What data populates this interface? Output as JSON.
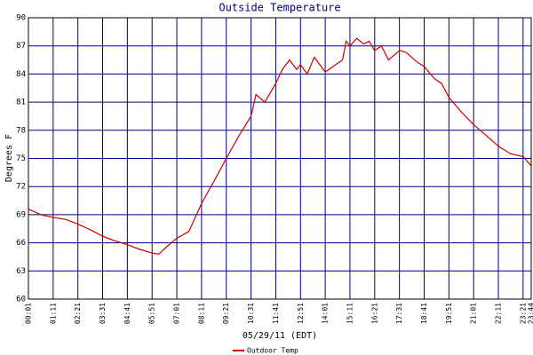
{
  "chart_data": {
    "type": "line",
    "title": "Outside Temperature",
    "x_label": "05/29/11 (EDT)",
    "y_label": "Degrees F",
    "x": [
      1,
      36,
      71,
      106,
      141,
      176,
      211,
      246,
      281,
      316,
      351,
      370,
      390,
      421,
      455,
      491,
      525,
      561,
      595,
      631,
      645,
      670,
      701,
      720,
      740,
      760,
      771,
      790,
      810,
      841,
      870,
      890,
      900,
      911,
      930,
      950,
      965,
      981,
      1000,
      1020,
      1051,
      1070,
      1100,
      1121,
      1150,
      1170,
      1191,
      1225,
      1261,
      1295,
      1331,
      1365,
      1401,
      1424
    ],
    "series": [
      {
        "name": "Outdoor Temp",
        "color": "#cc0000",
        "values": [
          69.6,
          69.0,
          68.7,
          68.5,
          68.0,
          67.4,
          66.7,
          66.2,
          65.8,
          65.3,
          64.9,
          64.8,
          65.5,
          66.5,
          67.2,
          70.2,
          72.5,
          75.0,
          77.3,
          79.5,
          81.8,
          81.0,
          83.0,
          84.5,
          85.5,
          84.5,
          85.0,
          84.0,
          85.8,
          84.2,
          85.0,
          85.5,
          87.5,
          87.0,
          87.8,
          87.2,
          87.5,
          86.5,
          87.0,
          85.5,
          86.5,
          86.3,
          85.3,
          84.8,
          83.5,
          83.0,
          81.5,
          80.0,
          78.6,
          77.5,
          76.3,
          75.5,
          75.2,
          74.2
        ]
      }
    ],
    "xlim": [
      1,
      1424
    ],
    "xticks": [
      {
        "value": 1,
        "label": "00:01"
      },
      {
        "value": 71,
        "label": "01:11"
      },
      {
        "value": 141,
        "label": "02:21"
      },
      {
        "value": 211,
        "label": "03:31"
      },
      {
        "value": 281,
        "label": "04:41"
      },
      {
        "value": 351,
        "label": "05:51"
      },
      {
        "value": 421,
        "label": "07:01"
      },
      {
        "value": 491,
        "label": "08:11"
      },
      {
        "value": 561,
        "label": "09:21"
      },
      {
        "value": 631,
        "label": "10:31"
      },
      {
        "value": 701,
        "label": "11:41"
      },
      {
        "value": 771,
        "label": "12:51"
      },
      {
        "value": 841,
        "label": "14:01"
      },
      {
        "value": 911,
        "label": "15:11"
      },
      {
        "value": 981,
        "label": "16:21"
      },
      {
        "value": 1051,
        "label": "17:31"
      },
      {
        "value": 1121,
        "label": "18:41"
      },
      {
        "value": 1191,
        "label": "19:51"
      },
      {
        "value": 1261,
        "label": "21:01"
      },
      {
        "value": 1331,
        "label": "22:11"
      },
      {
        "value": 1401,
        "label": "23:21"
      },
      {
        "value": 1424,
        "label": "23:44"
      }
    ],
    "ylim": [
      60,
      90
    ],
    "yticks": [
      60,
      63,
      66,
      69,
      72,
      75,
      78,
      81,
      84,
      87,
      90
    ],
    "grid": true
  }
}
